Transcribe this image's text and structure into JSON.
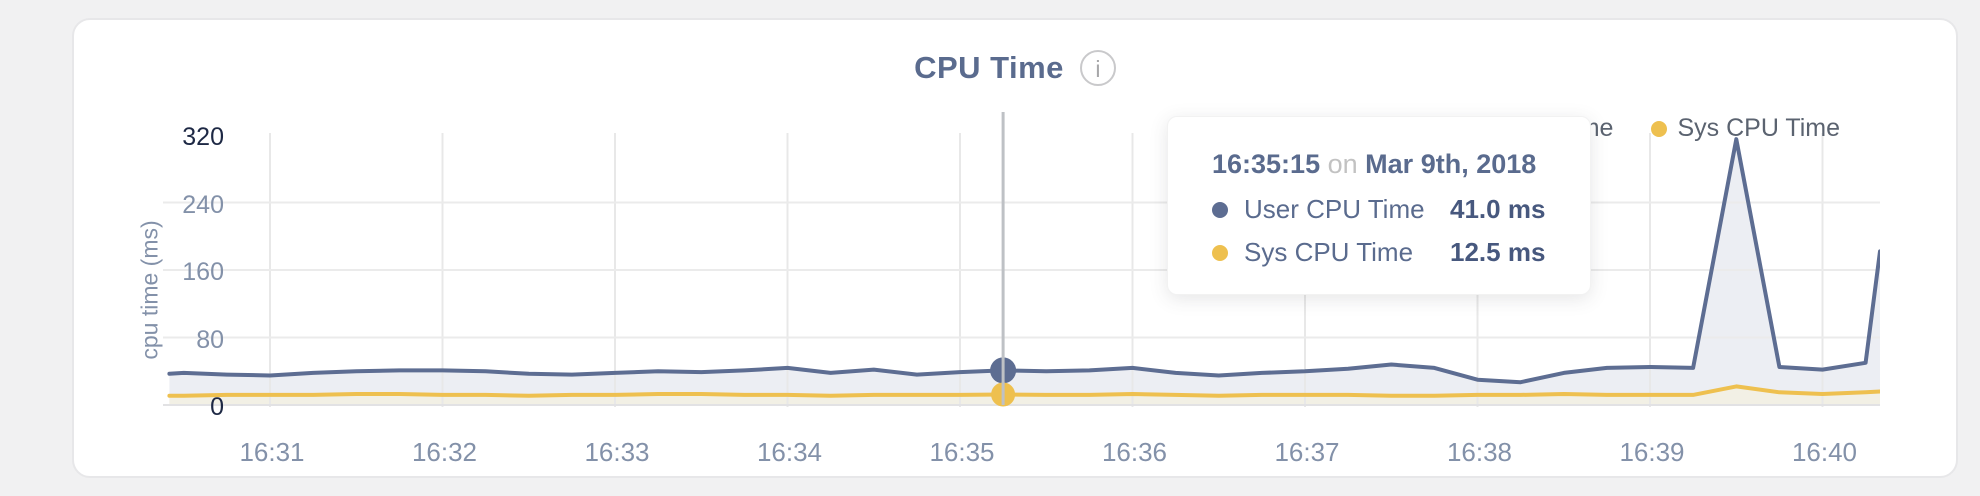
{
  "card": {
    "title": "CPU Time",
    "info_icon": "i"
  },
  "legend": [
    {
      "label": "User CPU Time",
      "color": "#5d6d92"
    },
    {
      "label": "Sys CPU Time",
      "color": "#eec04f"
    }
  ],
  "tooltip": {
    "time": "16:35:15",
    "connector": "on",
    "date": "Mar 9th, 2018",
    "rows": [
      {
        "label": "User CPU Time",
        "value": "41.0 ms",
        "color": "#5d6d92"
      },
      {
        "label": "Sys CPU Time",
        "value": "12.5 ms",
        "color": "#eec04f"
      }
    ]
  },
  "chart_data": {
    "type": "area",
    "title": "CPU Time",
    "ylabel": "cpu time (ms)",
    "ylim": [
      0,
      320
    ],
    "yticks": [
      0,
      80,
      160,
      240,
      320
    ],
    "xticks": [
      "16:31",
      "16:32",
      "16:33",
      "16:34",
      "16:35",
      "16:36",
      "16:37",
      "16:38",
      "16:39",
      "16:40"
    ],
    "grid": true,
    "legend_position": "top-right",
    "hover": {
      "time": "16:35:15"
    },
    "points_format": [
      "time",
      "ms"
    ],
    "series": [
      {
        "name": "User CPU Time",
        "color": "#5d6d92",
        "fill": "#eceef3",
        "points": [
          [
            "16:30:25",
            37
          ],
          [
            "16:30:30",
            38
          ],
          [
            "16:30:45",
            36
          ],
          [
            "16:31:00",
            35
          ],
          [
            "16:31:15",
            38
          ],
          [
            "16:31:30",
            40
          ],
          [
            "16:31:45",
            41
          ],
          [
            "16:32:00",
            41
          ],
          [
            "16:32:15",
            40
          ],
          [
            "16:32:30",
            37
          ],
          [
            "16:32:45",
            36
          ],
          [
            "16:33:00",
            38
          ],
          [
            "16:33:15",
            40
          ],
          [
            "16:33:30",
            39
          ],
          [
            "16:33:45",
            41
          ],
          [
            "16:34:00",
            44
          ],
          [
            "16:34:15",
            38
          ],
          [
            "16:34:30",
            42
          ],
          [
            "16:34:45",
            36
          ],
          [
            "16:35:00",
            39
          ],
          [
            "16:35:15",
            41
          ],
          [
            "16:35:30",
            40
          ],
          [
            "16:35:45",
            41
          ],
          [
            "16:36:00",
            44
          ],
          [
            "16:36:15",
            38
          ],
          [
            "16:36:30",
            35
          ],
          [
            "16:36:45",
            38
          ],
          [
            "16:37:00",
            40
          ],
          [
            "16:37:15",
            43
          ],
          [
            "16:37:30",
            48
          ],
          [
            "16:37:45",
            44
          ],
          [
            "16:38:00",
            30
          ],
          [
            "16:38:15",
            27
          ],
          [
            "16:38:30",
            38
          ],
          [
            "16:38:45",
            44
          ],
          [
            "16:39:00",
            45
          ],
          [
            "16:39:15",
            44
          ],
          [
            "16:39:30",
            315
          ],
          [
            "16:39:45",
            45
          ],
          [
            "16:40:00",
            42
          ],
          [
            "16:40:15",
            50
          ],
          [
            "16:40:20",
            182
          ]
        ]
      },
      {
        "name": "Sys CPU Time",
        "color": "#eec04f",
        "fill": "#f2f0e5",
        "points": [
          [
            "16:30:25",
            11
          ],
          [
            "16:30:30",
            11
          ],
          [
            "16:30:45",
            12
          ],
          [
            "16:31:00",
            12
          ],
          [
            "16:31:15",
            12
          ],
          [
            "16:31:30",
            13
          ],
          [
            "16:31:45",
            13
          ],
          [
            "16:32:00",
            12
          ],
          [
            "16:32:15",
            12
          ],
          [
            "16:32:30",
            11
          ],
          [
            "16:32:45",
            12
          ],
          [
            "16:33:00",
            12
          ],
          [
            "16:33:15",
            13
          ],
          [
            "16:33:30",
            13
          ],
          [
            "16:33:45",
            12
          ],
          [
            "16:34:00",
            12
          ],
          [
            "16:34:15",
            11
          ],
          [
            "16:34:30",
            12
          ],
          [
            "16:34:45",
            12
          ],
          [
            "16:35:00",
            12
          ],
          [
            "16:35:15",
            12.5
          ],
          [
            "16:35:30",
            12
          ],
          [
            "16:35:45",
            12
          ],
          [
            "16:36:00",
            13
          ],
          [
            "16:36:15",
            12
          ],
          [
            "16:36:30",
            11
          ],
          [
            "16:36:45",
            12
          ],
          [
            "16:37:00",
            12
          ],
          [
            "16:37:15",
            12
          ],
          [
            "16:37:30",
            11
          ],
          [
            "16:37:45",
            11
          ],
          [
            "16:38:00",
            12
          ],
          [
            "16:38:15",
            12
          ],
          [
            "16:38:30",
            13
          ],
          [
            "16:38:45",
            12
          ],
          [
            "16:39:00",
            12
          ],
          [
            "16:39:15",
            12
          ],
          [
            "16:39:30",
            22
          ],
          [
            "16:39:45",
            15
          ],
          [
            "16:40:00",
            13
          ],
          [
            "16:40:15",
            15
          ],
          [
            "16:40:20",
            16
          ]
        ]
      }
    ]
  }
}
